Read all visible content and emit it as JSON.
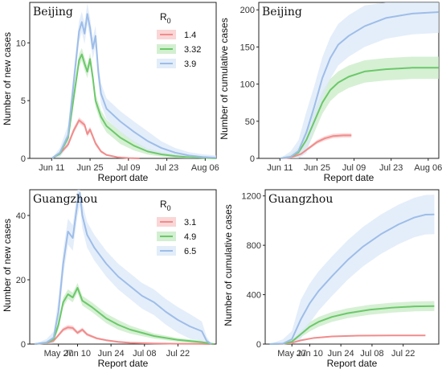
{
  "chart_data": [
    {
      "type": "line",
      "panel_title": "Beijing",
      "xlabel": "Report date",
      "ylabel": "Number of new cases",
      "x_ticks": [
        "Jun 11",
        "Jun 25",
        "Jul 09",
        "Jul 23",
        "Aug 06"
      ],
      "y_ticks": [
        "0",
        "5",
        "10"
      ],
      "ylim": [
        0,
        13.5
      ],
      "legend": {
        "title": "R",
        "title_sub": "0",
        "placement": "top-right",
        "entries": [
          "1.4",
          "3.32",
          "3.9"
        ]
      },
      "series": [
        {
          "name": "1.4",
          "color": "#f08c8c",
          "band_color": "#f9cccc",
          "points": [
            [
              0,
              0
            ],
            [
              3,
              0.4
            ],
            [
              6,
              1.2
            ],
            [
              8,
              2.4
            ],
            [
              10,
              3.3
            ],
            [
              12,
              2.9
            ],
            [
              13,
              2.1
            ],
            [
              14,
              2.5
            ],
            [
              16,
              1.3
            ],
            [
              18,
              0.6
            ],
            [
              20,
              0.3
            ],
            [
              24,
              0.1
            ],
            [
              28,
              0.03
            ],
            [
              32,
              0
            ]
          ],
          "band": [
            0.25
          ]
        },
        {
          "name": "3.32",
          "color": "#6cc86a",
          "band_color": "#c8ebc6",
          "points": [
            [
              0,
              0
            ],
            [
              3,
              0.4
            ],
            [
              6,
              1.8
            ],
            [
              8,
              5.2
            ],
            [
              10,
              8.5
            ],
            [
              11,
              9
            ],
            [
              12,
              8.2
            ],
            [
              13,
              7.5
            ],
            [
              14,
              8.6
            ],
            [
              15,
              7
            ],
            [
              16,
              5
            ],
            [
              18,
              3.6
            ],
            [
              20,
              2.8
            ],
            [
              25,
              1.8
            ],
            [
              30,
              1.1
            ],
            [
              35,
              0.6
            ],
            [
              40,
              0.35
            ],
            [
              45,
              0.2
            ],
            [
              50,
              0.1
            ],
            [
              55,
              0.05
            ],
            [
              60,
              0
            ]
          ],
          "band": [
            0.55
          ]
        },
        {
          "name": "3.9",
          "color": "#9ebde8",
          "band_color": "#dbe8f8",
          "points": [
            [
              0,
              0
            ],
            [
              3,
              0.5
            ],
            [
              6,
              2
            ],
            [
              8,
              6.5
            ],
            [
              10,
              11
            ],
            [
              11,
              11.8
            ],
            [
              12,
              10.8
            ],
            [
              13,
              12.5
            ],
            [
              14,
              11.3
            ],
            [
              15,
              9.5
            ],
            [
              16,
              10.6
            ],
            [
              17,
              7.5
            ],
            [
              18,
              5.6
            ],
            [
              20,
              4.3
            ],
            [
              25,
              3.2
            ],
            [
              30,
              2.3
            ],
            [
              35,
              1.5
            ],
            [
              40,
              0.9
            ],
            [
              45,
              0.5
            ],
            [
              50,
              0.25
            ],
            [
              55,
              0.12
            ],
            [
              60,
              0.05
            ]
          ],
          "band": [
            0.9
          ]
        }
      ]
    },
    {
      "type": "line",
      "panel_title": "Beijing",
      "xlabel": "Report date",
      "ylabel": "Number of cumulative cases",
      "x_ticks": [
        "Jun 11",
        "Jun 25",
        "Jul 09",
        "Jul 23",
        "Aug 06"
      ],
      "y_ticks": [
        "0",
        "50",
        "100",
        "150",
        "200"
      ],
      "ylim": [
        0,
        210
      ],
      "series": [
        {
          "name": "1.4",
          "color": "#f08c8c",
          "band_color": "#f9cccc",
          "points": [
            [
              0,
              0
            ],
            [
              4,
              1
            ],
            [
              8,
              6
            ],
            [
              11,
              14
            ],
            [
              14,
              22
            ],
            [
              17,
              27
            ],
            [
              20,
              30
            ],
            [
              24,
              31
            ],
            [
              27,
              31
            ]
          ],
          "band": [
            3
          ]
        },
        {
          "name": "3.32",
          "color": "#6cc86a",
          "band_color": "#c8ebc6",
          "points": [
            [
              0,
              0
            ],
            [
              4,
              2
            ],
            [
              7,
              8
            ],
            [
              10,
              25
            ],
            [
              13,
              50
            ],
            [
              16,
              75
            ],
            [
              19,
              92
            ],
            [
              22,
              102
            ],
            [
              26,
              110
            ],
            [
              32,
              117
            ],
            [
              40,
              120
            ],
            [
              50,
              122
            ],
            [
              60,
              122
            ]
          ],
          "band": [
            15
          ]
        },
        {
          "name": "3.9",
          "color": "#9ebde8",
          "band_color": "#dbe8f8",
          "points": [
            [
              0,
              0
            ],
            [
              4,
              2
            ],
            [
              7,
              10
            ],
            [
              10,
              35
            ],
            [
              13,
              70
            ],
            [
              16,
              108
            ],
            [
              19,
              135
            ],
            [
              22,
              153
            ],
            [
              26,
              165
            ],
            [
              32,
              178
            ],
            [
              40,
              189
            ],
            [
              50,
              195
            ],
            [
              60,
              197
            ]
          ],
          "band": [
            28
          ]
        }
      ]
    },
    {
      "type": "line",
      "panel_title": "Guangzhou",
      "xlabel": "Report date",
      "ylabel": "Number of new cases",
      "x_ticks": [
        "May 27",
        "Jun 10",
        "Jun 24",
        "Jul 08",
        "Jul 22"
      ],
      "y_ticks": [
        "0",
        "20",
        "40"
      ],
      "ylim": [
        0,
        48
      ],
      "legend": {
        "title": "R",
        "title_sub": "0",
        "placement": "top-right",
        "entries": [
          "3.1",
          "4.9",
          "6.5"
        ]
      },
      "series": [
        {
          "name": "3.1",
          "color": "#f08c8c",
          "band_color": "#f9cccc",
          "points": [
            [
              0,
              0
            ],
            [
              5,
              0.3
            ],
            [
              8,
              1
            ],
            [
              12,
              4.5
            ],
            [
              14,
              5.2
            ],
            [
              16,
              5
            ],
            [
              18,
              3.5
            ],
            [
              20,
              4.5
            ],
            [
              22,
              3
            ],
            [
              26,
              1.8
            ],
            [
              30,
              1.2
            ],
            [
              35,
              0.7
            ],
            [
              40,
              0.4
            ],
            [
              50,
              0.2
            ],
            [
              60,
              0.1
            ],
            [
              70,
              0.05
            ],
            [
              75,
              0
            ]
          ],
          "band": [
            0.8
          ]
        },
        {
          "name": "4.9",
          "color": "#6cc86a",
          "band_color": "#c8ebc6",
          "points": [
            [
              0,
              0
            ],
            [
              5,
              0.4
            ],
            [
              8,
              1.5
            ],
            [
              10,
              6
            ],
            [
              12,
              13
            ],
            [
              14,
              15.5
            ],
            [
              16,
              14.5
            ],
            [
              18,
              17.5
            ],
            [
              20,
              13.5
            ],
            [
              24,
              11.5
            ],
            [
              30,
              8
            ],
            [
              35,
              6
            ],
            [
              40,
              4.5
            ],
            [
              50,
              2.5
            ],
            [
              60,
              1.3
            ],
            [
              70,
              0.6
            ],
            [
              75,
              0
            ]
          ],
          "band": [
            1.5
          ]
        },
        {
          "name": "6.5",
          "color": "#9ebde8",
          "band_color": "#dbe8f8",
          "points": [
            [
              0,
              0
            ],
            [
              5,
              0.5
            ],
            [
              8,
              2
            ],
            [
              10,
              10
            ],
            [
              12,
              25
            ],
            [
              14,
              35
            ],
            [
              16,
              33
            ],
            [
              18,
              44
            ],
            [
              19,
              47
            ],
            [
              20,
              40
            ],
            [
              22,
              34
            ],
            [
              25,
              30
            ],
            [
              30,
              25
            ],
            [
              35,
              21
            ],
            [
              40,
              18
            ],
            [
              45,
              15
            ],
            [
              50,
              13
            ],
            [
              55,
              10
            ],
            [
              60,
              7.5
            ],
            [
              65,
              5.5
            ],
            [
              70,
              4
            ],
            [
              72,
              1
            ],
            [
              74,
              0
            ]
          ],
          "band": [
            4
          ]
        }
      ]
    },
    {
      "type": "line",
      "panel_title": "Guangzhou",
      "xlabel": "Report date",
      "ylabel": "Number of cumulative cases",
      "x_ticks": [
        "May 27",
        "Jun 10",
        "Jun 24",
        "Jul 08",
        "Jul 22"
      ],
      "y_ticks": [
        "0",
        "400",
        "800",
        "1200"
      ],
      "ylim": [
        0,
        1250
      ],
      "series": [
        {
          "name": "3.1",
          "color": "#f08c8c",
          "band_color": "#f9cccc",
          "points": [
            [
              0,
              0
            ],
            [
              6,
              2
            ],
            [
              10,
              10
            ],
            [
              14,
              30
            ],
            [
              20,
              50
            ],
            [
              28,
              62
            ],
            [
              40,
              68
            ],
            [
              55,
              70
            ],
            [
              70,
              70
            ]
          ],
          "band": [
            6
          ]
        },
        {
          "name": "4.9",
          "color": "#6cc86a",
          "band_color": "#c8ebc6",
          "points": [
            [
              0,
              0
            ],
            [
              6,
              3
            ],
            [
              10,
              20
            ],
            [
              14,
              80
            ],
            [
              18,
              140
            ],
            [
              22,
              180
            ],
            [
              28,
              220
            ],
            [
              35,
              250
            ],
            [
              45,
              278
            ],
            [
              55,
              295
            ],
            [
              65,
              305
            ],
            [
              74,
              308
            ]
          ],
          "band": [
            40
          ]
        },
        {
          "name": "6.5",
          "color": "#9ebde8",
          "band_color": "#dbe8f8",
          "points": [
            [
              0,
              0
            ],
            [
              6,
              4
            ],
            [
              10,
              40
            ],
            [
              14,
              200
            ],
            [
              18,
              330
            ],
            [
              22,
              430
            ],
            [
              28,
              550
            ],
            [
              35,
              680
            ],
            [
              42,
              790
            ],
            [
              50,
              890
            ],
            [
              58,
              970
            ],
            [
              65,
              1025
            ],
            [
              70,
              1048
            ],
            [
              74,
              1050
            ]
          ],
          "band": [
            160
          ]
        }
      ]
    }
  ]
}
